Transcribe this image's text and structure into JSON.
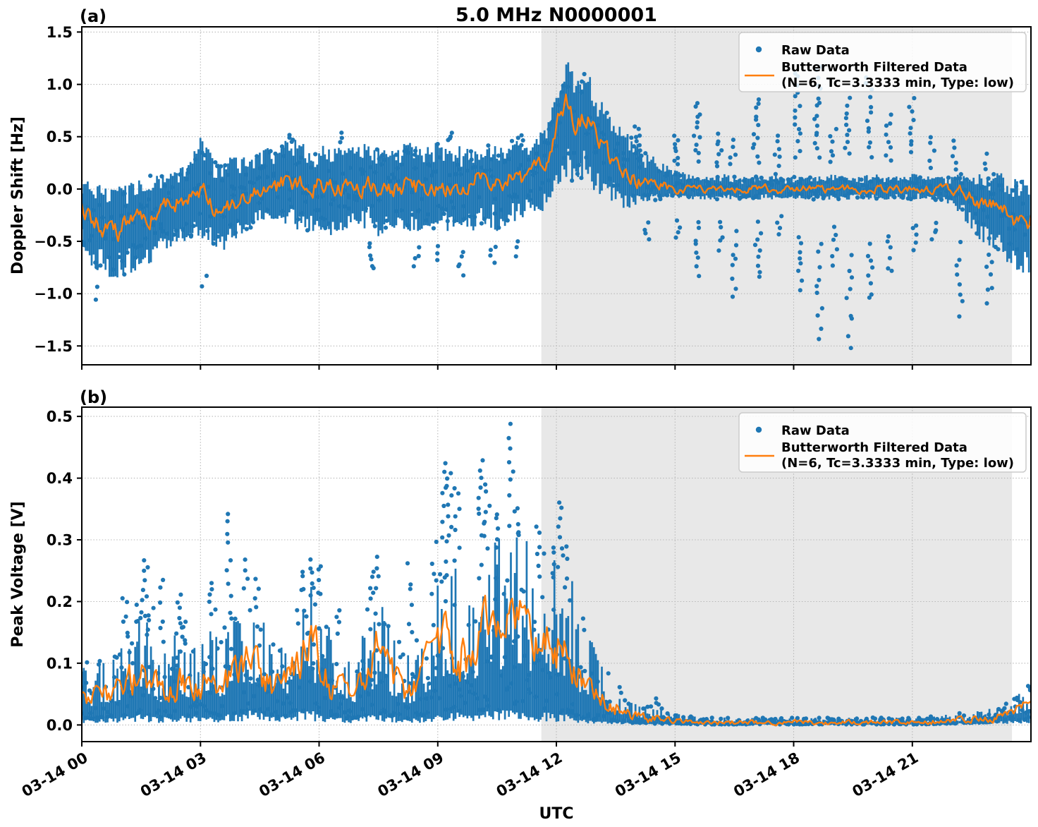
{
  "title": "5.0 MHz N0000001",
  "panel_a_label": "(a)",
  "panel_b_label": "(b)",
  "xlabel": "UTC",
  "legend": {
    "raw_label": "Raw Data",
    "filtered_label_line1": "Butterworth Filtered Data",
    "filtered_label_line2": "(N=6, Tc=3.3333 min, Type: low)"
  },
  "colors": {
    "raw": "#1f77b4",
    "filtered": "#ff7f0e",
    "shaded_region": "#e8e8e8",
    "grid": "#b8b8b8",
    "axis": "#000000"
  },
  "x_axis": {
    "tick_hours": [
      0,
      3,
      6,
      9,
      12,
      15,
      18,
      21
    ],
    "tick_labels": [
      "03-14 00",
      "03-14 03",
      "03-14 06",
      "03-14 09",
      "03-14 12",
      "03-14 15",
      "03-14 18",
      "03-14 21"
    ]
  },
  "shaded_region_hours": [
    11.62,
    23.52
  ],
  "chart_data": [
    {
      "type": "scatter",
      "panel": "a",
      "title": "5.0 MHz N0000001",
      "xlabel": "UTC",
      "ylabel": "Doppler Shift [Hz]",
      "ylim": [
        -1.68,
        1.55
      ],
      "yticks": [
        1.5,
        1.0,
        0.5,
        0.0,
        -0.5,
        -1.0,
        -1.5
      ],
      "ytick_labels": [
        "1.5",
        "1.0",
        "0.5",
        "0.0",
        "−0.5",
        "−1.0",
        "−1.5"
      ],
      "series": [
        "Raw Data",
        "Butterworth Filtered Data (N=6, Tc=3.3333 min, Type: low)"
      ],
      "grid": true,
      "legend_position": "upper right",
      "t_start_hour": 0,
      "t_step_hours": 0.25,
      "filtered": [
        -0.18,
        -0.28,
        -0.35,
        -0.45,
        -0.38,
        -0.32,
        -0.3,
        -0.25,
        -0.18,
        -0.15,
        -0.12,
        -0.1,
        0.05,
        -0.12,
        -0.28,
        -0.2,
        -0.1,
        -0.05,
        -0.02,
        0.0,
        0.02,
        0.12,
        0.05,
        0.02,
        0.05,
        0.1,
        0.02,
        0.0,
        0.03,
        0.08,
        0.0,
        -0.03,
        0.02,
        0.06,
        0.0,
        0.02,
        0.05,
        0.0,
        0.03,
        0.05,
        0.08,
        0.1,
        0.02,
        0.08,
        0.12,
        0.1,
        0.18,
        0.3,
        0.55,
        0.85,
        0.65,
        0.75,
        0.5,
        0.35,
        0.25,
        0.15,
        0.08,
        0.05,
        0.03,
        0.02,
        0.01,
        0.0,
        0.01,
        -0.01,
        0.0,
        0.01,
        0.0,
        -0.01,
        0.0,
        0.01,
        0.0,
        -0.01,
        0.0,
        0.01,
        0.0,
        -0.01,
        0.0,
        0.01,
        0.0,
        -0.01,
        0.0,
        0.01,
        0.0,
        -0.01,
        0.02,
        0.0,
        -0.01,
        0.0,
        -0.02,
        -0.02,
        -0.08,
        -0.12,
        -0.18,
        -0.22,
        -0.3,
        -0.33,
        -0.3
      ],
      "env_lo": [
        -0.55,
        -0.75,
        -0.8,
        -0.85,
        -0.85,
        -0.8,
        -0.75,
        -0.7,
        -0.6,
        -0.55,
        -0.5,
        -0.5,
        -0.45,
        -0.55,
        -0.6,
        -0.55,
        -0.45,
        -0.4,
        -0.35,
        -0.35,
        -0.3,
        -0.35,
        -0.4,
        -0.4,
        -0.4,
        -0.45,
        -0.4,
        -0.4,
        -0.35,
        -0.4,
        -0.45,
        -0.4,
        -0.35,
        -0.4,
        -0.4,
        -0.35,
        -0.4,
        -0.4,
        -0.35,
        -0.4,
        -0.4,
        -0.35,
        -0.4,
        -0.35,
        -0.3,
        -0.25,
        -0.3,
        -0.15,
        -0.05,
        0.1,
        0.05,
        0.1,
        -0.05,
        -0.1,
        -0.15,
        -0.2,
        -0.15,
        -0.12,
        -0.12,
        -0.1,
        -0.1,
        -0.1,
        -0.1,
        -0.1,
        -0.1,
        -0.1,
        -0.1,
        -0.1,
        -0.1,
        -0.1,
        -0.1,
        -0.1,
        -0.1,
        -0.1,
        -0.1,
        -0.1,
        -0.1,
        -0.1,
        -0.1,
        -0.1,
        -0.1,
        -0.1,
        -0.1,
        -0.1,
        -0.1,
        -0.1,
        -0.1,
        -0.12,
        -0.15,
        -0.25,
        -0.4,
        -0.5,
        -0.55,
        -0.65,
        -0.75,
        -0.8,
        -0.85
      ],
      "env_hi": [
        0.1,
        0.1,
        0.05,
        0.05,
        0.05,
        0.1,
        0.1,
        0.15,
        0.15,
        0.2,
        0.2,
        0.28,
        0.5,
        0.35,
        0.25,
        0.3,
        0.3,
        0.35,
        0.35,
        0.4,
        0.4,
        0.5,
        0.45,
        0.4,
        0.4,
        0.45,
        0.4,
        0.4,
        0.4,
        0.45,
        0.4,
        0.35,
        0.4,
        0.45,
        0.4,
        0.4,
        0.45,
        0.4,
        0.4,
        0.45,
        0.4,
        0.45,
        0.4,
        0.45,
        0.5,
        0.45,
        0.5,
        0.6,
        0.9,
        1.25,
        1.05,
        1.15,
        0.95,
        0.75,
        0.65,
        0.55,
        0.45,
        0.35,
        0.3,
        0.25,
        0.2,
        0.15,
        0.12,
        0.12,
        0.12,
        0.15,
        0.12,
        0.12,
        0.12,
        0.12,
        0.15,
        0.12,
        0.12,
        0.12,
        0.12,
        0.12,
        0.15,
        0.12,
        0.12,
        0.12,
        0.15,
        0.12,
        0.12,
        0.12,
        0.15,
        0.12,
        0.12,
        0.12,
        0.12,
        0.15,
        0.12,
        0.15,
        0.15,
        0.15,
        0.12,
        0.1,
        0.1
      ],
      "outliers": [
        [
          0.4,
          -0.9,
          -1.1,
          2
        ],
        [
          3.1,
          -0.8,
          -0.95,
          2
        ],
        [
          5.3,
          0.45,
          0.52,
          4
        ],
        [
          6.6,
          0.42,
          0.55,
          3
        ],
        [
          7.3,
          -0.5,
          -0.8,
          6
        ],
        [
          8.45,
          -0.55,
          -0.75,
          4
        ],
        [
          9.0,
          -0.5,
          -0.7,
          3
        ],
        [
          9.3,
          0.45,
          0.55,
          4
        ],
        [
          9.6,
          -0.55,
          -0.85,
          5
        ],
        [
          10.4,
          -0.5,
          -0.75,
          4
        ],
        [
          11.0,
          -0.5,
          -0.65,
          3
        ],
        [
          11.1,
          0.45,
          0.52,
          3
        ],
        [
          14.05,
          0.25,
          0.62,
          10
        ],
        [
          14.3,
          -0.3,
          -0.5,
          4
        ],
        [
          15.05,
          0.2,
          0.55,
          8
        ],
        [
          15.1,
          -0.3,
          -0.5,
          4
        ],
        [
          15.55,
          0.25,
          0.85,
          12
        ],
        [
          15.6,
          -0.3,
          -0.85,
          8
        ],
        [
          16.1,
          0.2,
          0.55,
          7
        ],
        [
          16.15,
          -0.3,
          -0.6,
          5
        ],
        [
          16.45,
          0.2,
          0.5,
          5
        ],
        [
          16.5,
          -0.4,
          -1.05,
          8
        ],
        [
          17.05,
          0.25,
          0.9,
          12
        ],
        [
          17.1,
          -0.3,
          -0.9,
          9
        ],
        [
          17.6,
          0.2,
          0.55,
          6
        ],
        [
          17.65,
          -0.25,
          -0.45,
          4
        ],
        [
          18.1,
          0.3,
          1.15,
          14
        ],
        [
          18.15,
          -0.4,
          -1.0,
          8
        ],
        [
          18.6,
          0.3,
          1.2,
          16
        ],
        [
          18.65,
          -0.5,
          -1.45,
          10
        ],
        [
          19.0,
          0.2,
          0.6,
          6
        ],
        [
          19.05,
          -0.3,
          -0.8,
          6
        ],
        [
          19.35,
          0.3,
          0.9,
          10
        ],
        [
          19.4,
          -0.6,
          -1.55,
          9
        ],
        [
          19.9,
          0.3,
          1.1,
          12
        ],
        [
          19.95,
          -0.5,
          -1.1,
          8
        ],
        [
          20.4,
          0.25,
          0.75,
          8
        ],
        [
          20.45,
          -0.4,
          -0.85,
          6
        ],
        [
          21.0,
          0.3,
          0.9,
          9
        ],
        [
          21.05,
          -0.3,
          -0.6,
          5
        ],
        [
          21.5,
          0.2,
          0.55,
          5
        ],
        [
          21.55,
          -0.3,
          -0.5,
          4
        ],
        [
          22.1,
          0.15,
          0.5,
          5
        ],
        [
          22.2,
          -0.5,
          -1.25,
          8
        ],
        [
          22.9,
          0.1,
          0.35,
          4
        ],
        [
          22.95,
          -0.6,
          -1.1,
          7
        ]
      ]
    },
    {
      "type": "scatter",
      "panel": "b",
      "xlabel": "UTC",
      "ylabel": "Peak Voltage [V]",
      "ylim": [
        -0.027,
        0.515
      ],
      "yticks": [
        0.5,
        0.4,
        0.3,
        0.2,
        0.1,
        0.0
      ],
      "ytick_labels": [
        "0.5",
        "0.4",
        "0.3",
        "0.2",
        "0.1",
        "0.0"
      ],
      "series": [
        "Raw Data",
        "Butterworth Filtered Data (N=6, Tc=3.3333 min, Type: low)"
      ],
      "grid": true,
      "legend_position": "upper right",
      "t_start_hour": 0,
      "t_step_hours": 0.25,
      "filtered": [
        0.045,
        0.04,
        0.05,
        0.05,
        0.06,
        0.07,
        0.09,
        0.07,
        0.05,
        0.06,
        0.07,
        0.06,
        0.07,
        0.09,
        0.07,
        0.08,
        0.1,
        0.14,
        0.09,
        0.07,
        0.06,
        0.09,
        0.12,
        0.14,
        0.1,
        0.07,
        0.06,
        0.05,
        0.06,
        0.09,
        0.13,
        0.09,
        0.06,
        0.05,
        0.06,
        0.1,
        0.12,
        0.16,
        0.12,
        0.1,
        0.14,
        0.17,
        0.14,
        0.16,
        0.2,
        0.16,
        0.14,
        0.17,
        0.13,
        0.15,
        0.1,
        0.07,
        0.05,
        0.04,
        0.03,
        0.02,
        0.015,
        0.012,
        0.01,
        0.009,
        0.007,
        0.006,
        0.005,
        0.004,
        0.004,
        0.004,
        0.004,
        0.004,
        0.004,
        0.004,
        0.004,
        0.004,
        0.004,
        0.004,
        0.004,
        0.004,
        0.004,
        0.004,
        0.004,
        0.004,
        0.004,
        0.004,
        0.004,
        0.004,
        0.004,
        0.004,
        0.005,
        0.006,
        0.007,
        0.008,
        0.01,
        0.011,
        0.012,
        0.015,
        0.02,
        0.03,
        0.035
      ],
      "env_lo": [
        0.012,
        0.01,
        0.012,
        0.012,
        0.014,
        0.015,
        0.02,
        0.015,
        0.012,
        0.014,
        0.015,
        0.015,
        0.018,
        0.02,
        0.015,
        0.018,
        0.02,
        0.025,
        0.02,
        0.015,
        0.012,
        0.018,
        0.022,
        0.025,
        0.02,
        0.015,
        0.012,
        0.01,
        0.012,
        0.018,
        0.02,
        0.015,
        0.012,
        0.01,
        0.012,
        0.015,
        0.02,
        0.025,
        0.02,
        0.018,
        0.022,
        0.025,
        0.022,
        0.025,
        0.028,
        0.022,
        0.02,
        0.022,
        0.018,
        0.02,
        0.015,
        0.01,
        0.008,
        0.006,
        0.005,
        0.004,
        0.003,
        0.003,
        0.002,
        0.002,
        0.002,
        0.002,
        0.001,
        0.001,
        0.001,
        0.001,
        0.001,
        0.001,
        0.001,
        0.001,
        0.001,
        0.001,
        0.001,
        0.001,
        0.001,
        0.001,
        0.001,
        0.001,
        0.001,
        0.001,
        0.001,
        0.001,
        0.001,
        0.001,
        0.001,
        0.001,
        0.001,
        0.002,
        0.002,
        0.003,
        0.003,
        0.004,
        0.005,
        0.006,
        0.008,
        0.008,
        0.01
      ],
      "env_hi": [
        0.11,
        0.1,
        0.11,
        0.12,
        0.13,
        0.16,
        0.2,
        0.16,
        0.12,
        0.14,
        0.16,
        0.14,
        0.15,
        0.17,
        0.15,
        0.18,
        0.2,
        0.22,
        0.18,
        0.15,
        0.14,
        0.18,
        0.22,
        0.26,
        0.2,
        0.16,
        0.14,
        0.12,
        0.13,
        0.18,
        0.22,
        0.18,
        0.14,
        0.12,
        0.14,
        0.18,
        0.24,
        0.3,
        0.26,
        0.22,
        0.28,
        0.34,
        0.3,
        0.34,
        0.36,
        0.3,
        0.28,
        0.3,
        0.26,
        0.3,
        0.22,
        0.16,
        0.12,
        0.09,
        0.07,
        0.05,
        0.04,
        0.035,
        0.03,
        0.025,
        0.02,
        0.018,
        0.015,
        0.012,
        0.012,
        0.012,
        0.012,
        0.012,
        0.012,
        0.012,
        0.012,
        0.012,
        0.012,
        0.012,
        0.012,
        0.012,
        0.012,
        0.012,
        0.012,
        0.012,
        0.012,
        0.012,
        0.012,
        0.012,
        0.012,
        0.012,
        0.014,
        0.016,
        0.018,
        0.02,
        0.024,
        0.026,
        0.03,
        0.035,
        0.042,
        0.055,
        0.065
      ],
      "outliers": [
        [
          1.1,
          0.13,
          0.22,
          6
        ],
        [
          1.45,
          0.16,
          0.21,
          5
        ],
        [
          1.6,
          0.2,
          0.28,
          6
        ],
        [
          1.75,
          0.15,
          0.2,
          4
        ],
        [
          2.0,
          0.12,
          0.25,
          6
        ],
        [
          2.45,
          0.14,
          0.22,
          6
        ],
        [
          2.6,
          0.12,
          0.18,
          4
        ],
        [
          3.3,
          0.17,
          0.24,
          6
        ],
        [
          3.7,
          0.18,
          0.36,
          9
        ],
        [
          4.15,
          0.22,
          0.27,
          4
        ],
        [
          4.4,
          0.18,
          0.24,
          4
        ],
        [
          5.55,
          0.22,
          0.26,
          3
        ],
        [
          5.8,
          0.2,
          0.28,
          6
        ],
        [
          6.0,
          0.2,
          0.27,
          5
        ],
        [
          6.5,
          0.14,
          0.2,
          4
        ],
        [
          7.3,
          0.18,
          0.26,
          6
        ],
        [
          7.5,
          0.22,
          0.28,
          4
        ],
        [
          8.3,
          0.14,
          0.27,
          6
        ],
        [
          8.9,
          0.2,
          0.3,
          5
        ],
        [
          9.15,
          0.24,
          0.44,
          10
        ],
        [
          9.3,
          0.3,
          0.42,
          8
        ],
        [
          9.5,
          0.26,
          0.4,
          7
        ],
        [
          10.1,
          0.3,
          0.44,
          9
        ],
        [
          10.25,
          0.28,
          0.4,
          7
        ],
        [
          10.5,
          0.3,
          0.35,
          4
        ],
        [
          10.85,
          0.37,
          0.49,
          7
        ],
        [
          11.0,
          0.3,
          0.36,
          5
        ],
        [
          11.5,
          0.25,
          0.33,
          5
        ],
        [
          11.9,
          0.24,
          0.3,
          4
        ],
        [
          12.1,
          0.25,
          0.37,
          8
        ],
        [
          12.3,
          0.2,
          0.3,
          4
        ],
        [
          14.6,
          0.03,
          0.045,
          3
        ],
        [
          23.9,
          0.055,
          0.065,
          3
        ]
      ]
    }
  ]
}
